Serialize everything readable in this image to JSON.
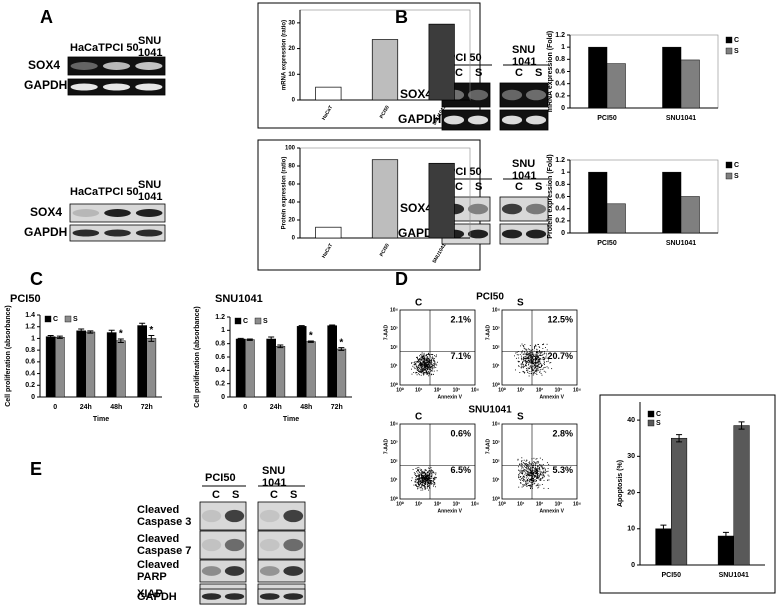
{
  "panel_labels": [
    "A",
    "B",
    "C",
    "D",
    "E"
  ],
  "blot_a_mrna": {
    "lanes": [
      "HaCaT",
      "PCI 50",
      "SNU 1041"
    ],
    "rows": [
      "SOX4",
      "GAPDH"
    ]
  },
  "blot_a_protein": {
    "lanes": [
      "HaCaT",
      "PCI 50",
      "SNU 1041"
    ],
    "rows": [
      "SOX4",
      "GAPDH"
    ]
  },
  "blot_b_mrna": {
    "groups": [
      "PCI 50",
      "SNU 1041"
    ],
    "lanes": [
      "C",
      "S",
      "C",
      "S"
    ],
    "rows": [
      "SOX4",
      "GAPDH"
    ]
  },
  "blot_b_protein": {
    "groups": [
      "PCI 50",
      "SNU 1041"
    ],
    "lanes": [
      "C",
      "S",
      "C",
      "S"
    ],
    "rows": [
      "SOX4",
      "GAPDH"
    ]
  },
  "blot_e": {
    "groups": [
      "PCI50",
      "SNU 1041"
    ],
    "lanes": [
      "C",
      "S",
      "C",
      "S"
    ],
    "rows": [
      [
        "Cleaved",
        "Caspase 3"
      ],
      [
        "Cleaved",
        "Caspase 7"
      ],
      [
        "Cleaved",
        "PARP"
      ],
      [
        "XIAP"
      ],
      [
        "GAPDH"
      ]
    ]
  },
  "flow": {
    "x_axis": "Annexin V",
    "y_axis": "7-AAD",
    "axis_ticks": [
      "10⁰",
      "10¹",
      "10²",
      "10³",
      "10⁴"
    ],
    "groups": [
      {
        "title": "PCI50",
        "plots": [
          {
            "label": "C",
            "upper_right": "2.1%",
            "lower_right": "7.1%"
          },
          {
            "label": "S",
            "upper_right": "12.5%",
            "lower_right": "20.7%"
          }
        ]
      },
      {
        "title": "SNU1041",
        "plots": [
          {
            "label": "C",
            "upper_right": "0.6%",
            "lower_right": "6.5%"
          },
          {
            "label": "S",
            "upper_right": "2.8%",
            "lower_right": "5.3%"
          }
        ]
      }
    ]
  },
  "chart_data": [
    {
      "type": "bar",
      "ylabel": "mRNA expression (ratio)",
      "categories": [
        "HaCaT",
        "PCI50",
        "SNU1041"
      ],
      "values": [
        5,
        23.5,
        29.5
      ],
      "colors": [
        "#ffffff",
        "#bdbdbd",
        "#3c3c3c"
      ],
      "ylim": [
        0,
        35
      ],
      "yticks": [
        0,
        10,
        20,
        30
      ]
    },
    {
      "type": "bar",
      "ylabel": "Protein expression (ratio)",
      "categories": [
        "HaCaT",
        "PCI50",
        "SNU1041"
      ],
      "values": [
        12,
        87,
        83
      ],
      "colors": [
        "#ffffff",
        "#bdbdbd",
        "#3c3c3c"
      ],
      "ylim": [
        0,
        100
      ],
      "yticks": [
        0,
        20,
        40,
        60,
        80,
        100
      ]
    },
    {
      "type": "bar",
      "ylabel": "mRNA expression (Fold)",
      "categories": [
        "PCI50",
        "SNU1041"
      ],
      "series": [
        {
          "name": "C",
          "color": "#000000",
          "values": [
            1,
            1
          ]
        },
        {
          "name": "S",
          "color": "#7f7f7f",
          "values": [
            0.73,
            0.79
          ]
        }
      ],
      "ylim": [
        0,
        1.2
      ],
      "yticks": [
        0,
        0.2,
        0.4,
        0.6,
        0.8,
        1,
        1.2
      ]
    },
    {
      "type": "bar",
      "ylabel": "Protein expression (Fold)",
      "categories": [
        "PCI50",
        "SNU1041"
      ],
      "series": [
        {
          "name": "C",
          "color": "#000000",
          "values": [
            1,
            1
          ]
        },
        {
          "name": "S",
          "color": "#7f7f7f",
          "values": [
            0.48,
            0.6
          ]
        }
      ],
      "ylim": [
        0,
        1.2
      ],
      "yticks": [
        0,
        0.2,
        0.4,
        0.6,
        0.8,
        1,
        1.2
      ]
    },
    {
      "type": "bar",
      "title": "PCI50",
      "ylabel": "Cell proliferation (absorbance)",
      "xlabel": "Time",
      "categories": [
        "0",
        "24h",
        "48h",
        "72h"
      ],
      "series": [
        {
          "name": "C",
          "color": "#000000",
          "values": [
            1.03,
            1.13,
            1.1,
            1.22
          ],
          "errors": [
            0.02,
            0.03,
            0.04,
            0.04
          ]
        },
        {
          "name": "S",
          "color": "#8c8c8c",
          "values": [
            1.02,
            1.11,
            0.96,
            1
          ],
          "errors": [
            0.02,
            0.02,
            0.03,
            0.05
          ]
        }
      ],
      "significance": [
        null,
        null,
        "*",
        "*"
      ],
      "ylim": [
        0,
        1.4
      ],
      "yticks": [
        0,
        0.2,
        0.4,
        0.6,
        0.8,
        1,
        1.2,
        1.4
      ]
    },
    {
      "type": "bar",
      "title": "SNU1041",
      "ylabel": "Cell proliferation (absorbance)",
      "xlabel": "Time",
      "categories": [
        "0",
        "24h",
        "48h",
        "72h"
      ],
      "series": [
        {
          "name": "C",
          "color": "#000000",
          "values": [
            0.87,
            0.87,
            1.06,
            1.07
          ],
          "errors": [
            0.01,
            0.03,
            0.01,
            0.01
          ]
        },
        {
          "name": "S",
          "color": "#8c8c8c",
          "values": [
            0.86,
            0.76,
            0.83,
            0.72
          ],
          "errors": [
            0.01,
            0.02,
            0.01,
            0.02
          ]
        }
      ],
      "significance": [
        null,
        null,
        "*",
        "*"
      ],
      "ylim": [
        0,
        1.2
      ],
      "yticks": [
        0,
        0.2,
        0.4,
        0.6,
        0.8,
        1,
        1.2
      ]
    },
    {
      "type": "bar",
      "ylabel": "Apoptosis (%)",
      "categories": [
        "PCI50",
        "SNU1041"
      ],
      "series": [
        {
          "name": "C",
          "color": "#000000",
          "values": [
            10,
            8
          ],
          "errors": [
            1,
            1
          ]
        },
        {
          "name": "S",
          "color": "#595959",
          "values": [
            35,
            38.5
          ],
          "errors": [
            1,
            1
          ]
        }
      ],
      "ylim": [
        0,
        45
      ],
      "yticks": [
        0,
        10,
        20,
        30,
        40
      ]
    }
  ]
}
